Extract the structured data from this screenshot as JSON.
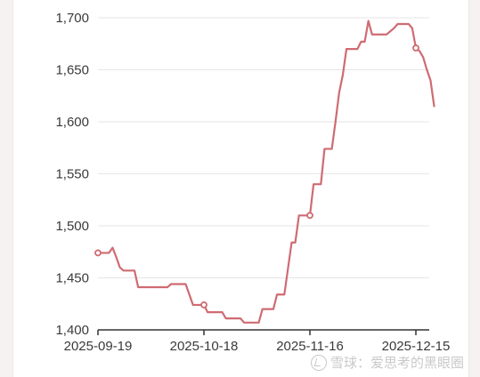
{
  "chart_data": {
    "type": "line",
    "title": "",
    "xlabel": "",
    "ylabel": "",
    "ylim": [
      1400,
      1700
    ],
    "yticks": [
      1400,
      1450,
      1500,
      1550,
      1600,
      1650,
      1700
    ],
    "ytick_labels": [
      "1,400",
      "1,450",
      "1,500",
      "1,550",
      "1,600",
      "1,650",
      "1,700"
    ],
    "xlim": [
      0,
      92
    ],
    "xticks": [
      0,
      29,
      58,
      87
    ],
    "xtick_labels": [
      "2025-09-19",
      "2025-10-18",
      "2025-11-16",
      "2025-12-15"
    ],
    "grid": "horizontal",
    "line_color": "#cf6b72",
    "grid_color": "#e6e6e6",
    "series": [
      {
        "values": [
          [
            0,
            1474
          ],
          [
            3,
            1474
          ],
          [
            4,
            1479
          ],
          [
            5,
            1470
          ],
          [
            6,
            1460
          ],
          [
            7,
            1457
          ],
          [
            10,
            1457
          ],
          [
            11,
            1441
          ],
          [
            19,
            1441
          ],
          [
            20,
            1444
          ],
          [
            24,
            1444
          ],
          [
            26,
            1424
          ],
          [
            29,
            1424
          ],
          [
            30,
            1417
          ],
          [
            34,
            1417
          ],
          [
            35,
            1411
          ],
          [
            39,
            1411
          ],
          [
            40,
            1407
          ],
          [
            44,
            1407
          ],
          [
            45,
            1420
          ],
          [
            48,
            1420
          ],
          [
            49,
            1434
          ],
          [
            51,
            1434
          ],
          [
            53,
            1484
          ],
          [
            54,
            1484
          ],
          [
            55,
            1510
          ],
          [
            58,
            1510
          ],
          [
            59,
            1540
          ],
          [
            61,
            1540
          ],
          [
            62,
            1574
          ],
          [
            64,
            1574
          ],
          [
            65,
            1600
          ],
          [
            66,
            1628
          ],
          [
            67,
            1645
          ],
          [
            68,
            1670
          ],
          [
            71,
            1670
          ],
          [
            72,
            1677
          ],
          [
            73,
            1677
          ],
          [
            74,
            1697
          ],
          [
            75,
            1684
          ],
          [
            79,
            1684
          ],
          [
            81,
            1690
          ],
          [
            82,
            1694
          ],
          [
            85,
            1694
          ],
          [
            86,
            1690
          ],
          [
            87,
            1671
          ],
          [
            88,
            1668
          ],
          [
            89,
            1662
          ],
          [
            90,
            1650
          ],
          [
            91,
            1640
          ],
          [
            92,
            1615
          ]
        ]
      }
    ],
    "markers": [
      [
        0,
        1474
      ],
      [
        29,
        1424
      ],
      [
        58,
        1510
      ],
      [
        87,
        1671
      ]
    ]
  },
  "watermark": {
    "text": "雪球：爱思考的黑眼圈"
  }
}
